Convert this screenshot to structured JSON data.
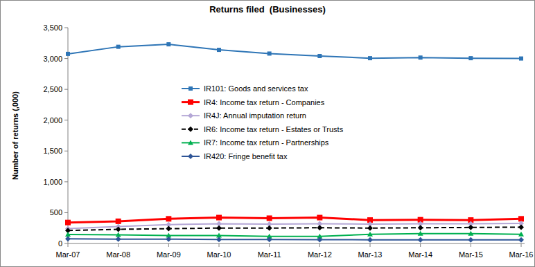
{
  "chart_data": {
    "type": "line",
    "title": "Returns filed  (Businesses)",
    "y_label": "Number of returns (,000)",
    "categories": [
      "Mar-07",
      "Mar-08",
      "Mar-09",
      "Mar-10",
      "Mar-11",
      "Mar-12",
      "Mar-13",
      "Mar-14",
      "Mar-15",
      "Mar-16"
    ],
    "ylim": [
      0,
      3500
    ],
    "yticks": [
      0,
      500,
      {
        "value": 1000,
        "label": "1,000"
      },
      {
        "value": 1500,
        "label": "1,500"
      },
      {
        "value": 2000,
        "label": "2,000"
      },
      {
        "value": 2500,
        "label": "2,500"
      },
      {
        "value": 3000,
        "label": "3,000"
      },
      {
        "value": 3500,
        "label": "3,500"
      }
    ],
    "grid": false,
    "legend": "center",
    "series": [
      {
        "name": "IR101: Goods and services tax",
        "color": "#2e75b6",
        "marker": "square",
        "line_style": "solid",
        "values": [
          3075,
          3190,
          3230,
          3140,
          3080,
          3040,
          3005,
          3015,
          3005,
          3000
        ]
      },
      {
        "name": "IR4: Income tax return - Companies",
        "color": "#ff0000",
        "marker": "square",
        "line_style": "solid",
        "values": [
          340,
          360,
          400,
          420,
          410,
          420,
          380,
          385,
          380,
          400
        ]
      },
      {
        "name": "IR4J: Annual imputation return",
        "color": "#b4a7d6",
        "marker": "diamond",
        "line_style": "solid",
        "values": [
          240,
          275,
          305,
          320,
          315,
          320,
          315,
          320,
          320,
          325
        ]
      },
      {
        "name": "IR6: Income tax return - Estates or Trusts",
        "color": "#000000",
        "marker": "diamond",
        "line_style": "dashed",
        "values": [
          210,
          230,
          240,
          250,
          250,
          255,
          250,
          255,
          260,
          265
        ]
      },
      {
        "name": "IR7: Income tax return - Partnerships",
        "color": "#00b050",
        "marker": "triangle",
        "line_style": "solid",
        "values": [
          145,
          140,
          130,
          130,
          115,
          115,
          150,
          160,
          160,
          150
        ]
      },
      {
        "name": "IR420: Fringe benefit tax",
        "color": "#2f5597",
        "marker": "diamond",
        "line_style": "solid",
        "values": [
          75,
          70,
          70,
          65,
          65,
          62,
          60,
          60,
          60,
          60
        ]
      }
    ]
  }
}
